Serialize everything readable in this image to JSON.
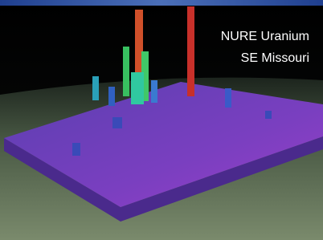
{
  "image": {
    "caption_lines": [
      "NURE Uranium",
      "SE Missouri"
    ]
  }
}
